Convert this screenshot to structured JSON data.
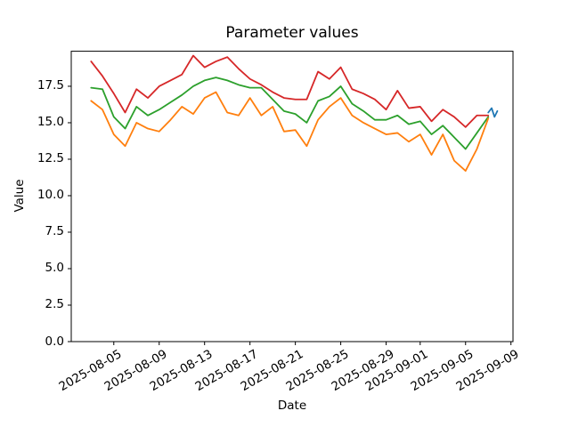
{
  "figure": {
    "background": "#ffffff",
    "text_color": "#000000",
    "spine_color": "#000000"
  },
  "chart_data": {
    "type": "line",
    "title": "Parameter values",
    "xlabel": "Date",
    "ylabel": "Value",
    "grid": false,
    "legend": "none",
    "ylim": [
      0,
      19.9
    ],
    "y_tick_labels": [
      "0.0",
      "2.5",
      "5.0",
      "7.5",
      "10.0",
      "12.5",
      "15.0",
      "17.5"
    ],
    "y_tick_values": [
      0,
      2.5,
      5,
      7.5,
      10,
      12.5,
      15,
      17.5
    ],
    "x_tick_labels": [
      "2025-08-05",
      "2025-08-09",
      "2025-08-13",
      "2025-08-17",
      "2025-08-21",
      "2025-08-25",
      "2025-08-29",
      "2025-09-01",
      "2025-09-05",
      "2025-09-09"
    ],
    "x_tick_days": [
      4,
      8,
      12,
      16,
      20,
      24,
      28,
      31,
      35,
      39
    ],
    "xlim_days": [
      0.25,
      39.18
    ],
    "dates": [
      "2025-08-03",
      "2025-08-04",
      "2025-08-05",
      "2025-08-06",
      "2025-08-07",
      "2025-08-08",
      "2025-08-09",
      "2025-08-10",
      "2025-08-11",
      "2025-08-12",
      "2025-08-13",
      "2025-08-14",
      "2025-08-15",
      "2025-08-16",
      "2025-08-17",
      "2025-08-18",
      "2025-08-19",
      "2025-08-20",
      "2025-08-21",
      "2025-08-22",
      "2025-08-23",
      "2025-08-24",
      "2025-08-25",
      "2025-08-26",
      "2025-08-27",
      "2025-08-28",
      "2025-08-29",
      "2025-08-30",
      "2025-08-31",
      "2025-09-01",
      "2025-09-02",
      "2025-09-03",
      "2025-09-04",
      "2025-09-05",
      "2025-09-06",
      "2025-09-07"
    ],
    "series": [
      {
        "name": "red-line",
        "color": "#d62728",
        "values": [
          19.2,
          18.2,
          17.0,
          15.7,
          17.3,
          16.7,
          17.5,
          17.9,
          18.3,
          19.6,
          18.8,
          19.2,
          19.5,
          18.7,
          18.0,
          17.6,
          17.1,
          16.7,
          16.6,
          16.6,
          18.5,
          18.0,
          18.8,
          17.3,
          17.0,
          16.6,
          15.9,
          17.2,
          16.0,
          16.1,
          15.1,
          15.9,
          15.4,
          14.7,
          15.5,
          15.5
        ]
      },
      {
        "name": "green-line",
        "color": "#2ca02c",
        "values": [
          17.4,
          17.3,
          15.4,
          14.6,
          16.1,
          15.5,
          15.9,
          16.4,
          16.9,
          17.5,
          17.9,
          18.1,
          17.9,
          17.6,
          17.4,
          17.4,
          16.6,
          15.8,
          15.6,
          15.0,
          16.5,
          16.8,
          17.5,
          16.3,
          15.8,
          15.2,
          15.2,
          15.5,
          14.9,
          15.1,
          14.2,
          14.8,
          14.0,
          13.2,
          14.3,
          15.4
        ]
      },
      {
        "name": "orange-line",
        "color": "#ff7f0e",
        "values": [
          16.5,
          15.9,
          14.2,
          13.4,
          15.0,
          14.6,
          14.4,
          15.2,
          16.1,
          15.6,
          16.7,
          17.1,
          15.7,
          15.5,
          16.7,
          15.5,
          16.1,
          14.4,
          14.5,
          13.4,
          15.2,
          16.1,
          16.7,
          15.5,
          15.0,
          14.6,
          14.2,
          14.3,
          13.7,
          14.2,
          12.8,
          14.2,
          12.4,
          11.7,
          13.2,
          15.3
        ]
      },
      {
        "name": "blue-line",
        "color": "#1f77b4",
        "x_days": [
          37.0,
          37.3,
          37.55,
          37.8
        ],
        "values": [
          15.7,
          16.0,
          15.4,
          15.8
        ]
      }
    ]
  }
}
